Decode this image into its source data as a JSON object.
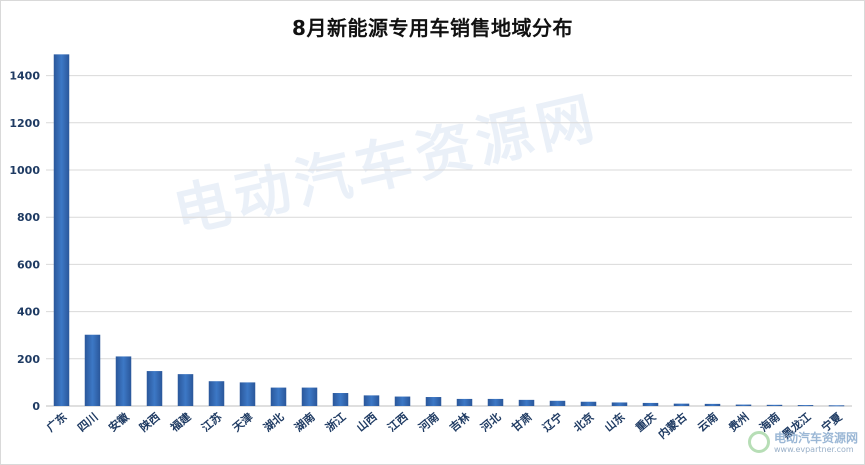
{
  "chart_data": {
    "type": "bar",
    "title": "8月新能源专用车销售地域分布",
    "categories": [
      "广东",
      "四川",
      "安徽",
      "陕西",
      "福建",
      "江苏",
      "天津",
      "湖北",
      "湖南",
      "浙江",
      "山西",
      "江西",
      "河南",
      "吉林",
      "河北",
      "甘肃",
      "辽宁",
      "北京",
      "山东",
      "重庆",
      "内蒙古",
      "云南",
      "贵州",
      "海南",
      "黑龙江",
      "宁夏"
    ],
    "values": [
      1490,
      302,
      210,
      148,
      135,
      105,
      100,
      78,
      78,
      55,
      45,
      40,
      38,
      30,
      30,
      26,
      22,
      18,
      15,
      13,
      10,
      9,
      6,
      5,
      4,
      3
    ],
    "ylim": [
      0,
      1500
    ],
    "yticks": [
      0,
      200,
      400,
      600,
      800,
      1000,
      1200,
      1400
    ],
    "xlabel": "",
    "ylabel": "",
    "grid": true,
    "legend": "none",
    "bar_color": "#2f62a8",
    "bar_color_light": "#4a86d0"
  },
  "watermark": "电动汽车资源网",
  "footer_logo": {
    "name": "电动汽车资源网",
    "url": "www.evpartner.com"
  }
}
